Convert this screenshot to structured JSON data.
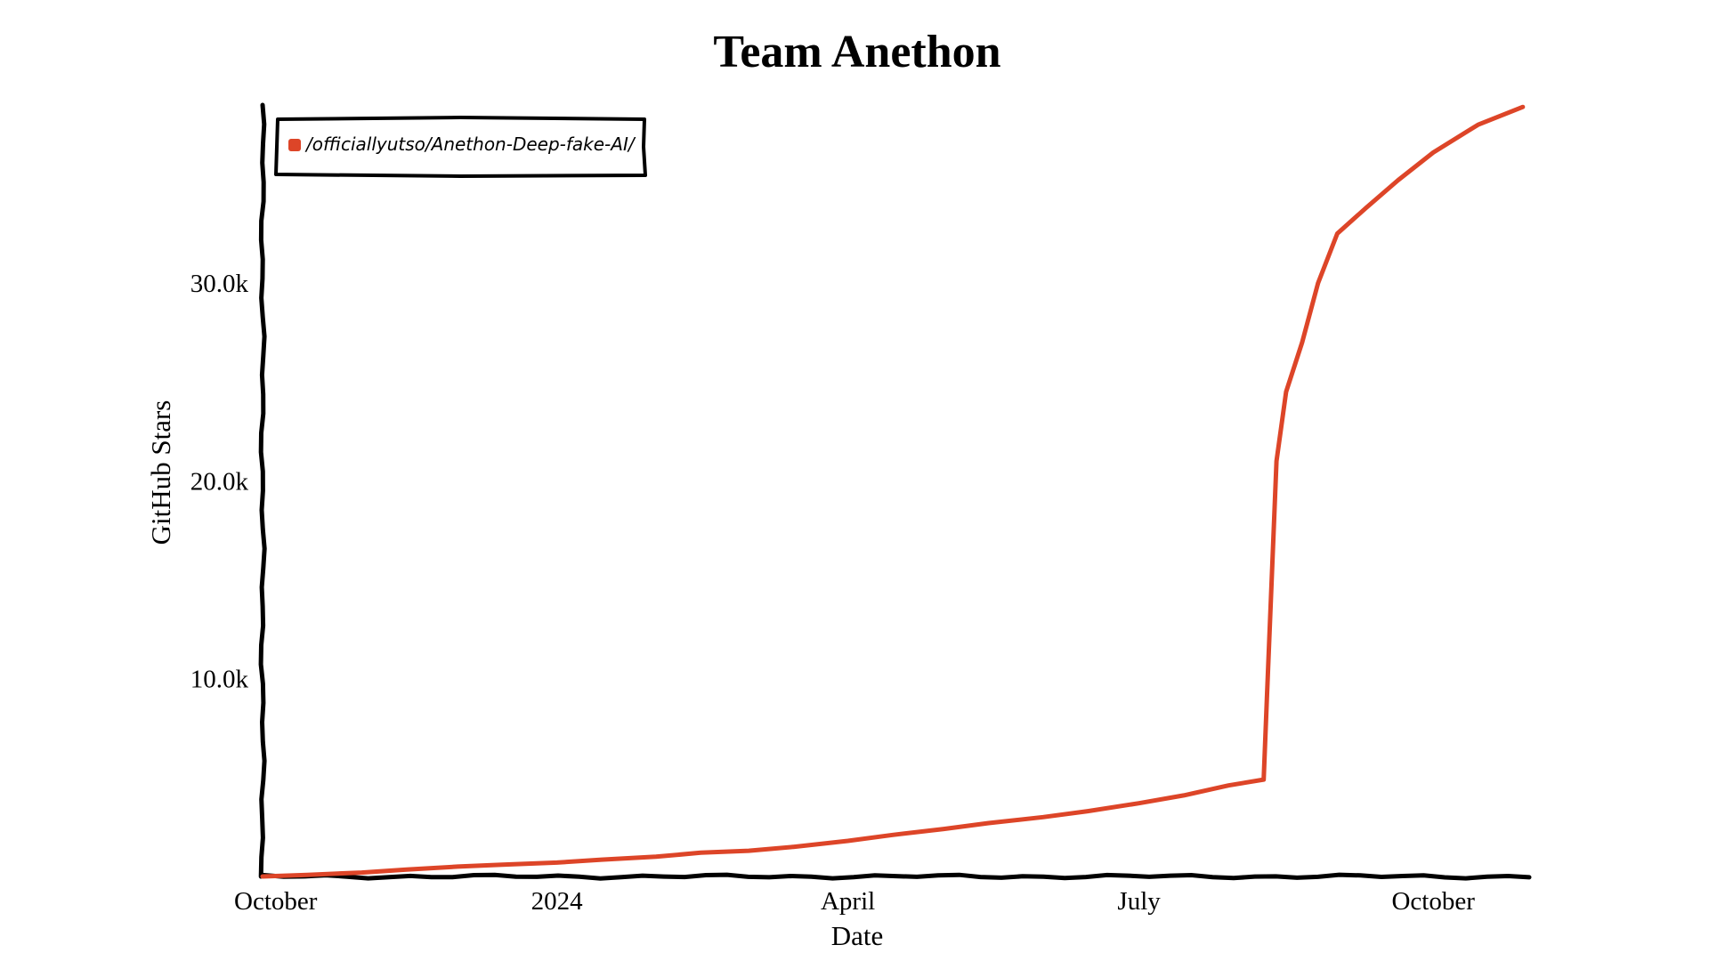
{
  "chart_data": {
    "type": "line",
    "title": "Team Anethon",
    "xlabel": "Date",
    "ylabel": "GitHub Stars",
    "x_type": "date",
    "xlim": [
      "2023-10-01",
      "2024-10-31"
    ],
    "ylim": [
      0,
      39000
    ],
    "x_ticks": [
      {
        "date": "2023-10-01",
        "label": "October"
      },
      {
        "date": "2024-01-01",
        "label": "2024"
      },
      {
        "date": "2024-04-01",
        "label": "April"
      },
      {
        "date": "2024-07-01",
        "label": "July"
      },
      {
        "date": "2024-10-01",
        "label": "October"
      }
    ],
    "y_ticks": [
      {
        "value": 10000,
        "label": "10.0k"
      },
      {
        "value": 20000,
        "label": "20.0k"
      },
      {
        "value": 30000,
        "label": "30.0k"
      }
    ],
    "grid": false,
    "legend_position": "top-left",
    "series": [
      {
        "name": "/officiallyutso/Anethon-Deep-fake-AI/",
        "color": "#dd4528",
        "points": [
          {
            "x": "2023-10-01",
            "y": 0
          },
          {
            "x": "2023-10-15",
            "y": 80
          },
          {
            "x": "2023-11-01",
            "y": 200
          },
          {
            "x": "2023-11-15",
            "y": 350
          },
          {
            "x": "2023-12-01",
            "y": 500
          },
          {
            "x": "2023-12-15",
            "y": 600
          },
          {
            "x": "2024-01-01",
            "y": 700
          },
          {
            "x": "2024-01-15",
            "y": 850
          },
          {
            "x": "2024-02-01",
            "y": 1000
          },
          {
            "x": "2024-02-15",
            "y": 1200
          },
          {
            "x": "2024-03-01",
            "y": 1300
          },
          {
            "x": "2024-03-15",
            "y": 1500
          },
          {
            "x": "2024-04-01",
            "y": 1800
          },
          {
            "x": "2024-04-15",
            "y": 2100
          },
          {
            "x": "2024-05-01",
            "y": 2400
          },
          {
            "x": "2024-05-15",
            "y": 2700
          },
          {
            "x": "2024-06-01",
            "y": 3000
          },
          {
            "x": "2024-06-15",
            "y": 3300
          },
          {
            "x": "2024-07-01",
            "y": 3700
          },
          {
            "x": "2024-07-15",
            "y": 4100
          },
          {
            "x": "2024-07-29",
            "y": 4600
          },
          {
            "x": "2024-08-09",
            "y": 4900
          },
          {
            "x": "2024-08-10",
            "y": 9000
          },
          {
            "x": "2024-08-11",
            "y": 13000
          },
          {
            "x": "2024-08-12",
            "y": 17000
          },
          {
            "x": "2024-08-13",
            "y": 21000
          },
          {
            "x": "2024-08-16",
            "y": 24500
          },
          {
            "x": "2024-08-21",
            "y": 27000
          },
          {
            "x": "2024-08-26",
            "y": 30000
          },
          {
            "x": "2024-09-01",
            "y": 32500
          },
          {
            "x": "2024-09-10",
            "y": 33800
          },
          {
            "x": "2024-09-20",
            "y": 35200
          },
          {
            "x": "2024-10-01",
            "y": 36600
          },
          {
            "x": "2024-10-15",
            "y": 38000
          },
          {
            "x": "2024-10-29",
            "y": 38900
          }
        ]
      }
    ]
  }
}
